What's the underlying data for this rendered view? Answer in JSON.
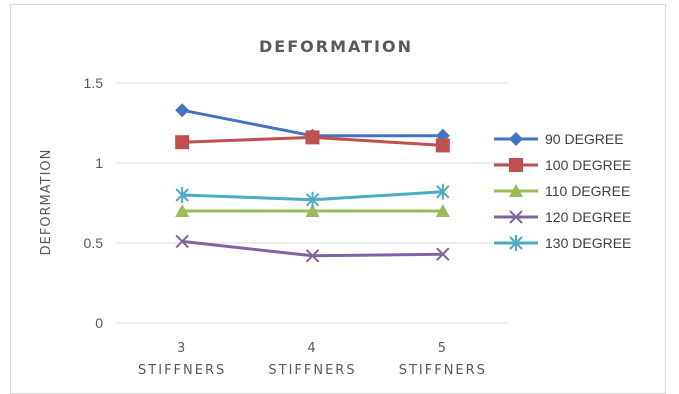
{
  "chart_data": {
    "type": "line",
    "title": "DEFORMATION",
    "xlabel": "",
    "ylabel": "DEFORMATION",
    "categories": [
      "3 STIFFNERS",
      "4 STIFFNERS",
      "5 STIFFNERS"
    ],
    "category_lines": [
      [
        "3",
        "STIFFNERS"
      ],
      [
        "4",
        "STIFFNERS"
      ],
      [
        "5",
        "STIFFNERS"
      ]
    ],
    "ylim": [
      0,
      1.5
    ],
    "yticks": [
      {
        "value": 0,
        "label": "0"
      },
      {
        "value": 0.5,
        "label": "0.5"
      },
      {
        "value": 1,
        "label": "1"
      },
      {
        "value": 1.5,
        "label": "1.5"
      }
    ],
    "grid": true,
    "legend_position": "right",
    "series": [
      {
        "name": "90 DEGREE",
        "values": [
          1.33,
          1.17,
          1.17
        ],
        "color": "#4472c4",
        "marker": "diamond"
      },
      {
        "name": "100 DEGREE",
        "values": [
          1.13,
          1.16,
          1.11
        ],
        "color": "#c0504d",
        "marker": "square"
      },
      {
        "name": "110 DEGREE",
        "values": [
          0.7,
          0.7,
          0.7
        ],
        "color": "#9bbb59",
        "marker": "triangle"
      },
      {
        "name": "120 DEGREE",
        "values": [
          0.51,
          0.42,
          0.43
        ],
        "color": "#8064a2",
        "marker": "x"
      },
      {
        "name": "130 DEGREE",
        "values": [
          0.8,
          0.77,
          0.82
        ],
        "color": "#4bacc6",
        "marker": "star"
      }
    ]
  }
}
